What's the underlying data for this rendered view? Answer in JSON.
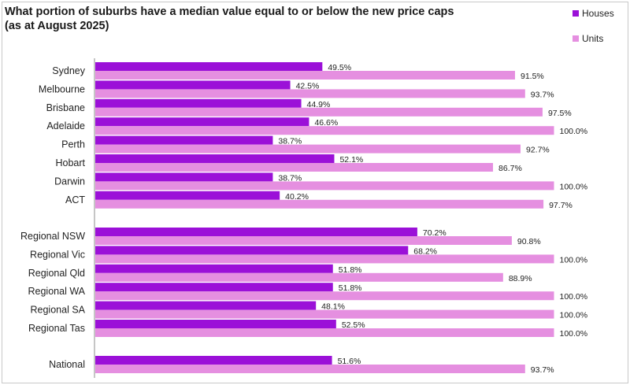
{
  "chart_data": {
    "type": "bar",
    "orientation": "horizontal",
    "title": "What portion of suburbs have a median value equal to or below the new price caps\n(as at August 2025)",
    "title_lines": [
      "What portion of suburbs have a median value equal to or below the new price caps",
      "(as at August 2025)"
    ],
    "categories": [
      "Sydney",
      "Melbourne",
      "Brisbane",
      "Adelaide",
      "Perth",
      "Hobart",
      "Darwin",
      "ACT",
      "Regional NSW",
      "Regional Vic",
      "Regional Qld",
      "Regional WA",
      "Regional SA",
      "Regional Tas",
      "National"
    ],
    "groups": [
      [
        "Sydney",
        "Melbourne",
        "Brisbane",
        "Adelaide",
        "Perth",
        "Hobart",
        "Darwin",
        "ACT"
      ],
      [
        "Regional NSW",
        "Regional Vic",
        "Regional Qld",
        "Regional WA",
        "Regional SA",
        "Regional Tas"
      ],
      [
        "National"
      ]
    ],
    "series": [
      {
        "name": "Houses",
        "color": "#9b10d8",
        "values": [
          49.5,
          42.5,
          44.9,
          46.6,
          38.7,
          52.1,
          38.7,
          40.2,
          70.2,
          68.2,
          51.8,
          51.8,
          48.1,
          52.5,
          51.6
        ],
        "labels": [
          "49.5%",
          "42.5%",
          "44.9%",
          "46.6%",
          "38.7%",
          "52.1%",
          "38.7%",
          "40.2%",
          "70.2%",
          "68.2%",
          "51.8%",
          "51.8%",
          "48.1%",
          "52.5%",
          "51.6%"
        ]
      },
      {
        "name": "Units",
        "color": "#e58fe0",
        "values": [
          91.5,
          93.7,
          97.5,
          100.0,
          92.7,
          86.7,
          100.0,
          97.7,
          90.8,
          100.0,
          88.9,
          100.0,
          100.0,
          100.0,
          93.7
        ],
        "labels": [
          "91.5%",
          "93.7%",
          "97.5%",
          "100.0%",
          "92.7%",
          "86.7%",
          "100.0%",
          "97.7%",
          "90.8%",
          "100.0%",
          "88.9%",
          "100.0%",
          "100.0%",
          "100.0%",
          "93.7%"
        ]
      }
    ],
    "xlim": [
      0,
      100
    ],
    "grid": false,
    "legend_position": "top-right"
  }
}
